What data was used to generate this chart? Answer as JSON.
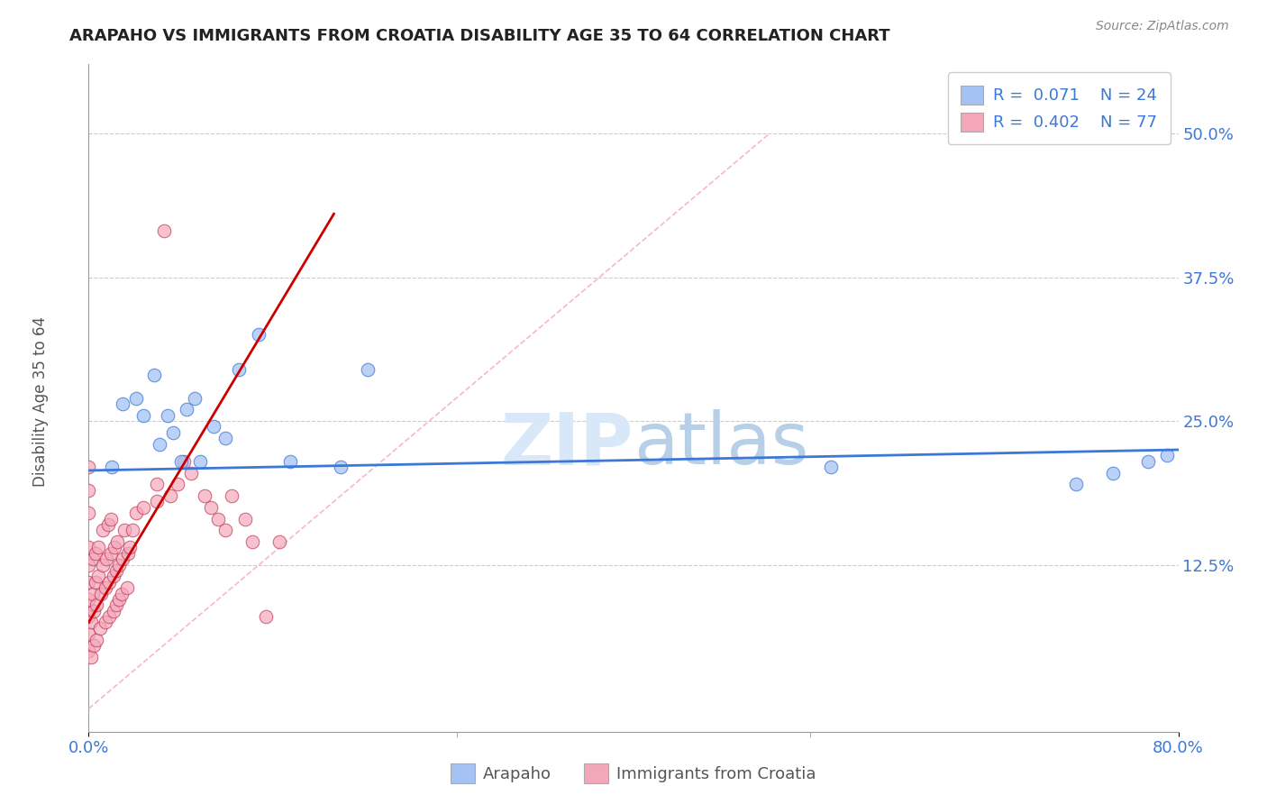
{
  "title": "ARAPAHO VS IMMIGRANTS FROM CROATIA DISABILITY AGE 35 TO 64 CORRELATION CHART",
  "source": "Source: ZipAtlas.com",
  "ylabel": "Disability Age 35 to 64",
  "ytick_values": [
    0.125,
    0.25,
    0.375,
    0.5
  ],
  "ytick_labels": [
    "12.5%",
    "25.0%",
    "37.5%",
    "50.0%"
  ],
  "xtick_values": [
    0.0,
    0.8
  ],
  "xtick_labels": [
    "0.0%",
    "80.0%"
  ],
  "xlim": [
    0.0,
    0.8
  ],
  "ylim": [
    -0.02,
    0.56
  ],
  "legend_label1": "Arapaho",
  "legend_label2": "Immigrants from Croatia",
  "R1": "0.071",
  "N1": "24",
  "R2": "0.402",
  "N2": "77",
  "color_blue_fill": "#a4c2f4",
  "color_blue_edge": "#3c78d8",
  "color_pink_fill": "#f4a7b9",
  "color_pink_edge": "#c0395a",
  "color_line_blue": "#3c78d8",
  "color_line_pink": "#cc0000",
  "color_diag": "#f4a7b9",
  "watermark_color": "#d9e8f8",
  "arapaho_x": [
    0.017,
    0.025,
    0.035,
    0.04,
    0.048,
    0.052,
    0.058,
    0.062,
    0.068,
    0.072,
    0.078,
    0.082,
    0.092,
    0.1,
    0.11,
    0.125,
    0.148,
    0.185,
    0.205,
    0.545,
    0.725,
    0.752,
    0.778,
    0.792
  ],
  "arapaho_y": [
    0.21,
    0.265,
    0.27,
    0.255,
    0.29,
    0.23,
    0.255,
    0.24,
    0.215,
    0.26,
    0.27,
    0.215,
    0.245,
    0.235,
    0.295,
    0.325,
    0.215,
    0.21,
    0.295,
    0.21,
    0.195,
    0.205,
    0.215,
    0.22
  ],
  "croatia_dense_x": [
    0.0,
    0.0,
    0.0,
    0.0,
    0.0,
    0.0,
    0.0,
    0.0,
    0.0,
    0.0,
    0.002,
    0.002,
    0.003,
    0.003,
    0.004,
    0.004,
    0.005,
    0.005,
    0.006,
    0.006,
    0.007,
    0.007,
    0.008,
    0.009,
    0.01,
    0.01,
    0.012,
    0.012,
    0.013,
    0.014,
    0.015,
    0.015,
    0.016,
    0.016,
    0.018,
    0.018,
    0.019,
    0.02,
    0.02,
    0.021,
    0.022,
    0.022,
    0.024,
    0.025,
    0.026,
    0.028,
    0.029,
    0.03,
    0.032,
    0.035
  ],
  "croatia_dense_y": [
    0.05,
    0.08,
    0.11,
    0.14,
    0.17,
    0.19,
    0.21,
    0.065,
    0.095,
    0.125,
    0.045,
    0.075,
    0.1,
    0.13,
    0.055,
    0.085,
    0.11,
    0.135,
    0.06,
    0.09,
    0.115,
    0.14,
    0.07,
    0.1,
    0.125,
    0.155,
    0.075,
    0.105,
    0.13,
    0.16,
    0.08,
    0.11,
    0.135,
    0.165,
    0.085,
    0.115,
    0.14,
    0.09,
    0.12,
    0.145,
    0.095,
    0.125,
    0.1,
    0.13,
    0.155,
    0.105,
    0.135,
    0.14,
    0.155,
    0.17
  ],
  "croatia_scatter_x": [
    0.04,
    0.05,
    0.06,
    0.07,
    0.075,
    0.085,
    0.09,
    0.095,
    0.1,
    0.105,
    0.115,
    0.12,
    0.13,
    0.14,
    0.05,
    0.055,
    0.065
  ],
  "croatia_scatter_y": [
    0.175,
    0.195,
    0.185,
    0.215,
    0.205,
    0.185,
    0.175,
    0.165,
    0.155,
    0.185,
    0.165,
    0.145,
    0.08,
    0.145,
    0.18,
    0.415,
    0.195
  ],
  "arap_line_x": [
    0.0,
    0.8
  ],
  "arap_line_y": [
    0.207,
    0.225
  ],
  "cr_line_x": [
    0.0,
    0.18
  ],
  "cr_line_y": [
    0.075,
    0.43
  ],
  "diag_line_x": [
    0.0,
    0.5
  ],
  "diag_line_y": [
    0.0,
    0.5
  ]
}
